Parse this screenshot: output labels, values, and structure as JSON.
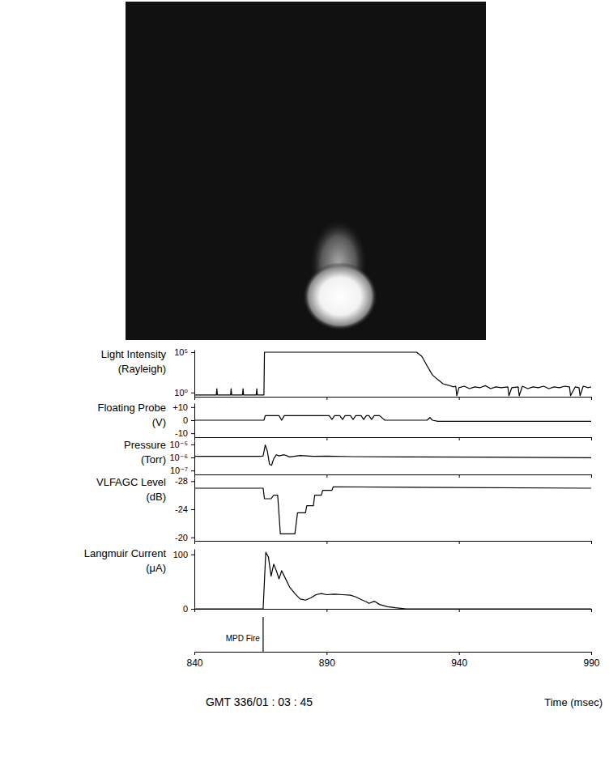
{
  "chart_data": [
    {
      "type": "line",
      "y_label": "Light Intensity (Rayleigh)",
      "log": "y",
      "xlim": [
        840,
        990
      ],
      "xticks": [
        840,
        890,
        940,
        990
      ],
      "ylim": [
        0.3,
        200000
      ],
      "yticks": [
        {
          "value": 100000,
          "label": "10⁵"
        },
        {
          "value": 1,
          "label": "10⁰"
        }
      ],
      "tick_labels": "y",
      "x": [
        840,
        848.3,
        848.5,
        848.7,
        853.7,
        853.9,
        854.1,
        858.2,
        858.4,
        858.6,
        863.4,
        863.6,
        863.8,
        866.3,
        866.5,
        924,
        926,
        928,
        930,
        932,
        934,
        936,
        938,
        938.8,
        939.2,
        940,
        942,
        944,
        946,
        948,
        950,
        952,
        954,
        956,
        958.5,
        958.9,
        960,
        962.4,
        962.8,
        964,
        966,
        968,
        970,
        972,
        974,
        976,
        978,
        980,
        981.8,
        982.2,
        984,
        985.4,
        985.8,
        987,
        989,
        990
      ],
      "values": [
        0.5,
        0.5,
        3,
        0.5,
        0.5,
        3,
        0.5,
        0.5,
        3,
        0.5,
        0.5,
        3,
        0.5,
        0.5,
        100000,
        100000,
        30000,
        2000,
        150,
        40,
        12,
        8,
        5,
        6,
        0.4,
        4,
        6,
        3,
        5,
        4,
        7,
        3,
        5,
        4,
        5,
        0.4,
        4,
        5,
        0.4,
        6,
        3,
        5,
        4,
        6,
        3,
        5,
        4,
        6,
        5,
        0.4,
        5,
        4,
        0.4,
        6,
        4,
        5
      ]
    },
    {
      "type": "line",
      "y_label": "Floating Probe (V)",
      "xlim": [
        840,
        990
      ],
      "xticks": [
        840,
        890,
        940,
        990
      ],
      "ylim": [
        -13,
        13
      ],
      "yticks": [
        {
          "value": 10,
          "label": "+10"
        },
        0,
        -10
      ],
      "tick_labels": "y",
      "x": [
        840,
        866.3,
        866.8,
        872,
        873,
        874,
        891,
        892,
        893,
        895,
        896,
        897,
        899,
        900,
        901,
        903,
        904,
        905,
        906,
        907,
        908,
        910,
        912,
        928,
        929,
        930,
        932,
        990
      ],
      "values": [
        0,
        0,
        3.5,
        3.5,
        0,
        3.5,
        3.5,
        0.5,
        3.5,
        3.5,
        0.5,
        3.5,
        3.5,
        0.5,
        3.5,
        3.5,
        0.5,
        3.5,
        3.5,
        0.5,
        3.5,
        3.5,
        0,
        0,
        2,
        0,
        -0.8,
        -0.8
      ]
    },
    {
      "type": "line",
      "y_label": "Pressure (Torr)",
      "log": "y",
      "xlim": [
        840,
        990
      ],
      "xticks": [
        840,
        890,
        940,
        990
      ],
      "ylim": [
        5e-08,
        2e-05
      ],
      "yticks": [
        {
          "value": 1e-05,
          "label": "10⁻⁵"
        },
        {
          "value": 1e-06,
          "label": "10⁻⁶"
        },
        {
          "value": 1e-07,
          "label": "10⁻⁷"
        }
      ],
      "tick_labels": "y",
      "x": [
        840,
        865,
        866,
        866.8,
        867.6,
        868.4,
        869.2,
        870,
        871,
        872,
        874,
        876,
        880,
        885,
        890,
        900,
        920,
        950,
        990
      ],
      "values": [
        1.2e-06,
        1.2e-06,
        1.3e-06,
        9e-06,
        3e-06,
        3e-07,
        2.5e-07,
        8e-07,
        1.6e-06,
        1.3e-06,
        1.6e-06,
        1.1e-06,
        1.4e-06,
        1.2e-06,
        1.25e-06,
        1.15e-06,
        1.1e-06,
        1.05e-06,
        9.5e-07
      ]
    },
    {
      "type": "line",
      "y_label": "VLFAGC Level (dB)",
      "xlim": [
        840,
        990
      ],
      "xticks": [
        840,
        890,
        940,
        990
      ],
      "ylim": [
        -19.5,
        -28.5
      ],
      "yticks": [
        -28,
        -24,
        -20
      ],
      "tick_labels": "y",
      "x": [
        840,
        866,
        866.5,
        869,
        870,
        871.5,
        872.5,
        878,
        879,
        882,
        882.5,
        885,
        885.5,
        888,
        888.5,
        892,
        892.5,
        990
      ],
      "values": [
        -27,
        -27,
        -25.5,
        -25.5,
        -26,
        -26,
        -20.5,
        -20.5,
        -23.5,
        -23.5,
        -24.5,
        -24.5,
        -26,
        -26,
        -26.7,
        -26.7,
        -27.2,
        -27
      ]
    },
    {
      "type": "line",
      "y_label": "Langmuir Current (μA)",
      "x_label": "Time (msec)",
      "subtitle": "GMT 336/01 : 03 : 45",
      "xlim": [
        840,
        990
      ],
      "xticks": [
        840,
        890,
        940,
        990
      ],
      "ylim": [
        0,
        110
      ],
      "yticks": [
        100,
        0
      ],
      "tick_labels": true,
      "annotations": [
        {
          "text": "MPD Fire",
          "x": 866
        }
      ],
      "x": [
        840,
        866,
        867,
        868,
        869,
        870,
        871,
        872,
        873,
        874,
        876,
        878,
        880,
        882,
        884,
        886,
        888,
        890,
        893,
        896,
        899,
        901,
        903,
        905,
        906,
        908,
        910,
        913,
        916,
        920,
        990
      ],
      "values": [
        0,
        0,
        104,
        95,
        60,
        82,
        70,
        55,
        70,
        60,
        40,
        28,
        18,
        16,
        20,
        26,
        28,
        26,
        27,
        26,
        25,
        22,
        17,
        13,
        10,
        14,
        8,
        4,
        2,
        0,
        0
      ]
    }
  ]
}
